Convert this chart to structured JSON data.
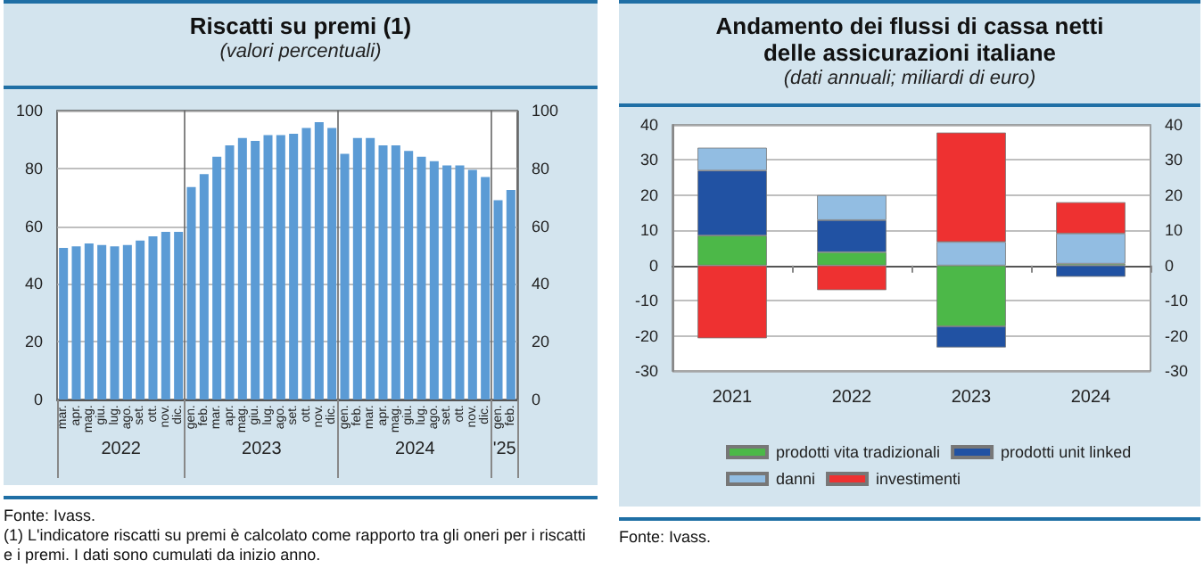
{
  "chart_data": [
    {
      "type": "bar",
      "title": "Riscatti su premi (1)",
      "subtitle": "(valori percentuali)",
      "categories": [
        "mar.",
        "apr.",
        "mag.",
        "giu.",
        "lug.",
        "ago.",
        "set.",
        "ott.",
        "nov.",
        "dic.",
        "gen.",
        "feb.",
        "mar.",
        "apr.",
        "mag.",
        "giu.",
        "lug.",
        "ago.",
        "set.",
        "ott.",
        "nov.",
        "dic.",
        "gen.",
        "feb.",
        "mar.",
        "apr.",
        "mag.",
        "giu.",
        "lug.",
        "ago.",
        "set.",
        "ott.",
        "nov.",
        "dic.",
        "gen.",
        "feb."
      ],
      "values": [
        52.5,
        53,
        54,
        53.5,
        53,
        53.5,
        55,
        56.5,
        58,
        58,
        73.5,
        78,
        84,
        88,
        90.5,
        89.5,
        91.5,
        91.5,
        92,
        94,
        96,
        94,
        85,
        90.5,
        90.5,
        88,
        88,
        86,
        84,
        82.5,
        81,
        81,
        79.5,
        77,
        69,
        72.5
      ],
      "color": "#5b9bd5",
      "ylim": [
        0,
        100
      ],
      "yticks": [
        0,
        20,
        40,
        60,
        80,
        100
      ],
      "y2lim": [
        0,
        100
      ],
      "y2ticks": [
        0,
        20,
        40,
        60,
        80,
        100
      ],
      "grid": "y",
      "annotations": [
        "2022",
        "2023",
        "2024",
        "'25",
        "Fonte: Ivass.",
        "(1) L'indicatore riscatti su premi è calcolato come rapporto tra gli oneri per i riscatti e i premi. I dati sono cumulati da inizio anno."
      ]
    },
    {
      "type": "bar",
      "title": "Andamento dei flussi di cassa netti delle assicurazioni italiane",
      "subtitle": "(dati annuali; miliardi di euro)",
      "categories": [
        "2021",
        "2022",
        "2023",
        "2024"
      ],
      "stacked": true,
      "series": [
        {
          "name": "prodotti vita tradizionali",
          "color": "#4cb848",
          "values": [
            8.5,
            3.8,
            -17.3,
            0.5
          ]
        },
        {
          "name": "prodotti unit linked",
          "color": "#2152a3",
          "values": [
            18.5,
            9.1,
            -6,
            -3.2
          ]
        },
        {
          "name": "danni",
          "color": "#92bde2",
          "values": [
            6.5,
            7.1,
            6.7,
            8.6
          ]
        },
        {
          "name": "investimenti",
          "color": "#ee3131",
          "values": [
            -20.7,
            -7,
            31.1,
            8.9
          ]
        }
      ],
      "ylim": [
        -30,
        40
      ],
      "yticks": [
        -30,
        -20,
        -10,
        0,
        10,
        20,
        30,
        40
      ],
      "y2lim": [
        -30,
        40
      ],
      "y2ticks": [
        -30,
        -20,
        -10,
        0,
        10,
        20,
        30,
        40
      ],
      "grid": "y",
      "legend": "bottom",
      "annotations": [
        "Fonte: Ivass."
      ]
    }
  ]
}
